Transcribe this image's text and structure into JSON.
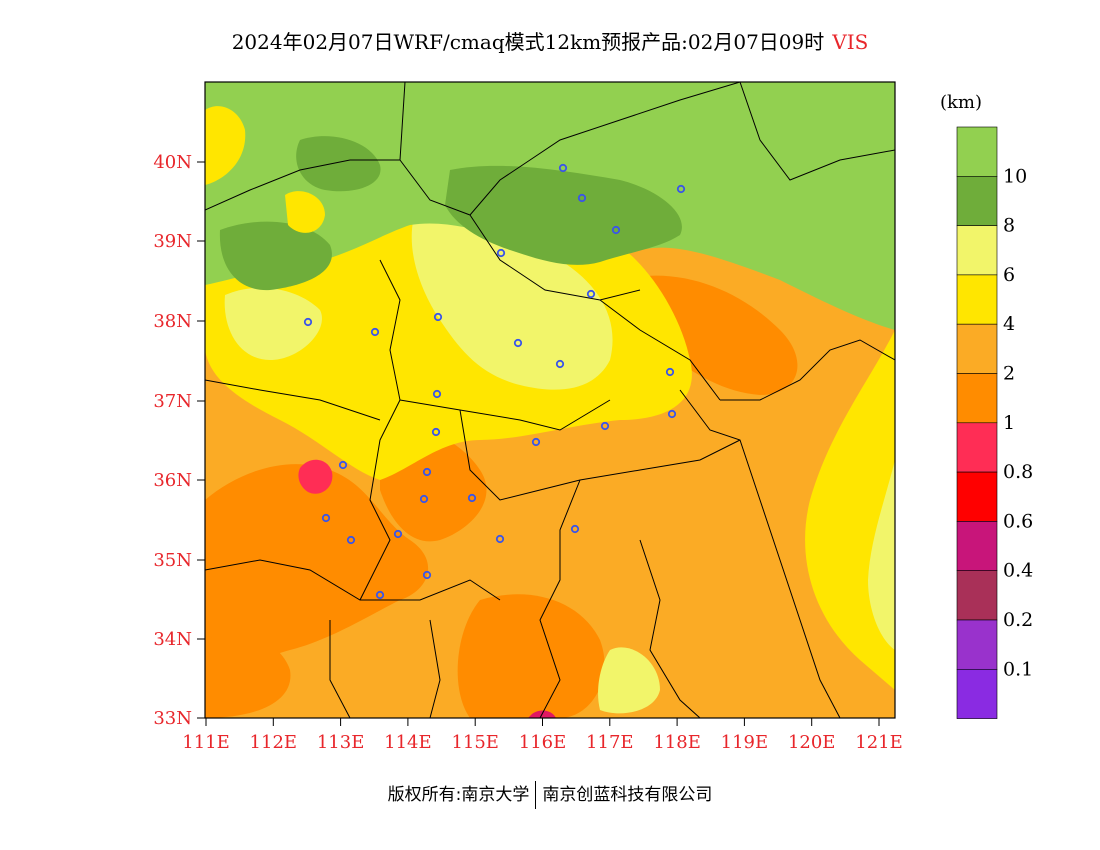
{
  "title": {
    "main": "2024年02月07日WRF/cmaq模式12km预报产品:02月07日09时",
    "variable": "VIS"
  },
  "map": {
    "lat_labels": [
      "40N",
      "39N",
      "38N",
      "37N",
      "36N",
      "35N",
      "34N",
      "33N"
    ],
    "lon_labels": [
      "111E",
      "112E",
      "113E",
      "114E",
      "115E",
      "116E",
      "117E",
      "118E",
      "119E",
      "120E",
      "121E"
    ],
    "label_color": "#e8262b",
    "station_color": "#3a55e8"
  },
  "legend": {
    "unit": "(km)",
    "bins": [
      {
        "color": "#92d050",
        "label": ""
      },
      {
        "color": "#6fad3a",
        "label": "10"
      },
      {
        "color": "#f2f56a",
        "label": "8"
      },
      {
        "color": "#ffe600",
        "label": "6"
      },
      {
        "color": "#fbab25",
        "label": "4"
      },
      {
        "color": "#ff8c00",
        "label": "2"
      },
      {
        "color": "#ff2d55",
        "label": "1"
      },
      {
        "color": "#ff0000",
        "label": "0.8"
      },
      {
        "color": "#c8157a",
        "label": "0.6"
      },
      {
        "color": "#a93058",
        "label": "0.4"
      },
      {
        "color": "#9932cc",
        "label": "0.2"
      },
      {
        "color": "#8a2be2",
        "label": "0.1"
      }
    ]
  },
  "footer": {
    "left": "版权所有:南京大学",
    "right": "南京创蓝科技有限公司"
  }
}
